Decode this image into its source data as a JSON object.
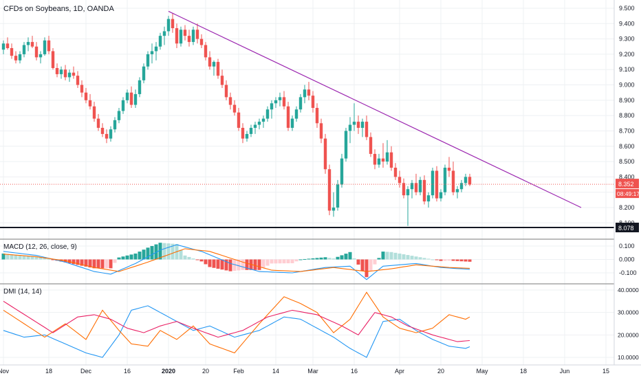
{
  "chart_data": [
    {
      "type": "candlestick",
      "title": "CFDs on Soybeans, 1D, OANDA",
      "y_axis": {
        "ticks": [
          "9.500",
          "9.400",
          "9.300",
          "9.200",
          "9.100",
          "9.000",
          "8.900",
          "8.800",
          "8.700",
          "8.600",
          "8.500",
          "8.400",
          "8.300",
          "8.200",
          "8.100"
        ],
        "ylim": [
          8.078,
          9.5
        ]
      },
      "last_price": "8.352",
      "countdown": "08:49:17",
      "low_marker": "8.078",
      "candles": [
        [
          9.23,
          9.29,
          9.2,
          9.27
        ],
        [
          9.27,
          9.31,
          9.23,
          9.24
        ],
        [
          9.24,
          9.27,
          9.17,
          9.19
        ],
        [
          9.19,
          9.22,
          9.14,
          9.16
        ],
        [
          9.16,
          9.22,
          9.14,
          9.2
        ],
        [
          9.2,
          9.28,
          9.18,
          9.26
        ],
        [
          9.26,
          9.31,
          9.22,
          9.28
        ],
        [
          9.28,
          9.32,
          9.24,
          9.25
        ],
        [
          9.25,
          9.28,
          9.16,
          9.18
        ],
        [
          9.18,
          9.22,
          9.14,
          9.2
        ],
        [
          9.2,
          9.31,
          9.19,
          9.29
        ],
        [
          9.29,
          9.32,
          9.2,
          9.22
        ],
        [
          9.22,
          9.24,
          9.1,
          9.11
        ],
        [
          9.11,
          9.14,
          9.05,
          9.07
        ],
        [
          9.07,
          9.12,
          9.04,
          9.1
        ],
        [
          9.1,
          9.13,
          9.03,
          9.05
        ],
        [
          9.05,
          9.1,
          9.02,
          9.08
        ],
        [
          9.08,
          9.12,
          9.04,
          9.06
        ],
        [
          9.06,
          9.09,
          8.98,
          9.0
        ],
        [
          9.0,
          9.03,
          8.92,
          8.95
        ],
        [
          8.95,
          8.98,
          8.88,
          8.9
        ],
        [
          8.9,
          8.94,
          8.84,
          8.86
        ],
        [
          8.86,
          8.89,
          8.76,
          8.78
        ],
        [
          8.78,
          8.81,
          8.7,
          8.72
        ],
        [
          8.72,
          8.75,
          8.66,
          8.68
        ],
        [
          8.68,
          8.71,
          8.62,
          8.65
        ],
        [
          8.65,
          8.73,
          8.63,
          8.71
        ],
        [
          8.71,
          8.79,
          8.69,
          8.77
        ],
        [
          8.77,
          8.85,
          8.75,
          8.83
        ],
        [
          8.83,
          8.92,
          8.81,
          8.9
        ],
        [
          8.9,
          8.97,
          8.88,
          8.95
        ],
        [
          8.95,
          8.99,
          8.85,
          8.87
        ],
        [
          8.87,
          8.97,
          8.85,
          8.94
        ],
        [
          8.94,
          9.05,
          8.92,
          9.03
        ],
        [
          9.03,
          9.14,
          9.01,
          9.12
        ],
        [
          9.12,
          9.22,
          9.1,
          9.2
        ],
        [
          9.2,
          9.27,
          9.14,
          9.22
        ],
        [
          9.22,
          9.28,
          9.16,
          9.25
        ],
        [
          9.25,
          9.34,
          9.23,
          9.32
        ],
        [
          9.32,
          9.38,
          9.26,
          9.35
        ],
        [
          9.35,
          9.45,
          9.32,
          9.43
        ],
        [
          9.43,
          9.47,
          9.34,
          9.37
        ],
        [
          9.37,
          9.4,
          9.24,
          9.27
        ],
        [
          9.27,
          9.38,
          9.25,
          9.36
        ],
        [
          9.36,
          9.39,
          9.29,
          9.32
        ],
        [
          9.32,
          9.36,
          9.25,
          9.28
        ],
        [
          9.28,
          9.38,
          9.26,
          9.36
        ],
        [
          9.36,
          9.4,
          9.27,
          9.3
        ],
        [
          9.3,
          9.33,
          9.24,
          9.26
        ],
        [
          9.26,
          9.28,
          9.16,
          9.18
        ],
        [
          9.18,
          9.22,
          9.1,
          9.12
        ],
        [
          9.12,
          9.16,
          9.06,
          9.15
        ],
        [
          9.15,
          9.17,
          9.04,
          9.06
        ],
        [
          9.06,
          9.1,
          8.98,
          9.0
        ],
        [
          9.0,
          9.03,
          8.9,
          8.92
        ],
        [
          8.92,
          8.95,
          8.84,
          8.87
        ],
        [
          8.87,
          8.9,
          8.8,
          8.82
        ],
        [
          8.82,
          8.85,
          8.7,
          8.72
        ],
        [
          8.72,
          8.75,
          8.62,
          8.65
        ],
        [
          8.65,
          8.7,
          8.63,
          8.68
        ],
        [
          8.68,
          8.74,
          8.66,
          8.72
        ],
        [
          8.72,
          8.76,
          8.68,
          8.74
        ],
        [
          8.74,
          8.78,
          8.71,
          8.76
        ],
        [
          8.76,
          8.8,
          8.72,
          8.78
        ],
        [
          8.78,
          8.86,
          8.76,
          8.84
        ],
        [
          8.84,
          8.9,
          8.78,
          8.88
        ],
        [
          8.88,
          8.92,
          8.85,
          8.9
        ],
        [
          8.9,
          8.95,
          8.86,
          8.92
        ],
        [
          8.92,
          8.96,
          8.84,
          8.86
        ],
        [
          8.86,
          8.89,
          8.7,
          8.72
        ],
        [
          8.72,
          8.8,
          8.7,
          8.78
        ],
        [
          8.78,
          8.86,
          8.76,
          8.84
        ],
        [
          8.84,
          8.94,
          8.82,
          8.92
        ],
        [
          8.92,
          9.0,
          8.88,
          8.97
        ],
        [
          8.97,
          9.02,
          8.9,
          8.93
        ],
        [
          8.93,
          8.96,
          8.82,
          8.85
        ],
        [
          8.85,
          8.88,
          8.72,
          8.75
        ],
        [
          8.75,
          8.78,
          8.62,
          8.65
        ],
        [
          8.65,
          8.68,
          8.42,
          8.45
        ],
        [
          8.45,
          8.48,
          8.15,
          8.18
        ],
        [
          8.18,
          8.3,
          8.14,
          8.2
        ],
        [
          8.2,
          8.38,
          8.18,
          8.35
        ],
        [
          8.35,
          8.55,
          8.33,
          8.52
        ],
        [
          8.52,
          8.72,
          8.5,
          8.7
        ],
        [
          8.7,
          8.79,
          8.62,
          8.74
        ],
        [
          8.74,
          8.88,
          8.7,
          8.76
        ],
        [
          8.76,
          8.8,
          8.68,
          8.72
        ],
        [
          8.72,
          8.78,
          8.66,
          8.76
        ],
        [
          8.76,
          8.8,
          8.64,
          8.66
        ],
        [
          8.66,
          8.69,
          8.53,
          8.55
        ],
        [
          8.55,
          8.58,
          8.45,
          8.48
        ],
        [
          8.48,
          8.55,
          8.46,
          8.52
        ],
        [
          8.52,
          8.62,
          8.46,
          8.5
        ],
        [
          8.5,
          8.64,
          8.48,
          8.56
        ],
        [
          8.56,
          8.6,
          8.44,
          8.46
        ],
        [
          8.46,
          8.49,
          8.38,
          8.4
        ],
        [
          8.4,
          8.44,
          8.33,
          8.36
        ],
        [
          8.36,
          8.39,
          8.26,
          8.28
        ],
        [
          8.28,
          8.34,
          8.08,
          8.32
        ],
        [
          8.32,
          8.38,
          8.26,
          8.36
        ],
        [
          8.36,
          8.42,
          8.28,
          8.3
        ],
        [
          8.3,
          8.4,
          8.28,
          8.38
        ],
        [
          8.38,
          8.41,
          8.22,
          8.24
        ],
        [
          8.24,
          8.3,
          8.2,
          8.28
        ],
        [
          8.28,
          8.46,
          8.26,
          8.44
        ],
        [
          8.44,
          8.47,
          8.24,
          8.26
        ],
        [
          8.26,
          8.32,
          8.24,
          8.3
        ],
        [
          8.3,
          8.48,
          8.28,
          8.46
        ],
        [
          8.46,
          8.53,
          8.4,
          8.44
        ],
        [
          8.44,
          8.5,
          8.28,
          8.3
        ],
        [
          8.3,
          8.34,
          8.26,
          8.32
        ],
        [
          8.32,
          8.38,
          8.3,
          8.36
        ],
        [
          8.36,
          8.42,
          8.34,
          8.4
        ],
        [
          8.4,
          8.42,
          8.34,
          8.35
        ]
      ],
      "trendline": {
        "start": [
          40,
          9.48
        ],
        "end": [
          140,
          8.2
        ]
      }
    },
    {
      "type": "line",
      "title": "MACD (12, 26, close, 9)",
      "y_axis": {
        "ticks": [
          "0.100",
          "0.000",
          "-0.100"
        ],
        "ylim": [
          -0.17,
          0.13
        ]
      },
      "knots_macd": [
        [
          0,
          0.06
        ],
        [
          8,
          0.03
        ],
        [
          15,
          -0.02
        ],
        [
          22,
          -0.09
        ],
        [
          26,
          -0.11
        ],
        [
          32,
          -0.03
        ],
        [
          38,
          0.07
        ],
        [
          42,
          0.11
        ],
        [
          48,
          0.06
        ],
        [
          55,
          -0.03
        ],
        [
          62,
          -0.09
        ],
        [
          70,
          -0.1
        ],
        [
          78,
          -0.06
        ],
        [
          84,
          -0.05
        ],
        [
          88,
          -0.15
        ],
        [
          92,
          -0.05
        ],
        [
          100,
          -0.03
        ],
        [
          106,
          -0.06
        ],
        [
          116,
          -0.08
        ],
        [
          122,
          -0.04
        ],
        [
          126,
          -0.03
        ]
      ],
      "knots_signal": [
        [
          0,
          0.04
        ],
        [
          8,
          0.02
        ],
        [
          15,
          -0.01
        ],
        [
          22,
          -0.06
        ],
        [
          28,
          -0.09
        ],
        [
          35,
          -0.02
        ],
        [
          44,
          0.08
        ],
        [
          50,
          0.06
        ],
        [
          58,
          -0.02
        ],
        [
          65,
          -0.08
        ],
        [
          72,
          -0.09
        ],
        [
          80,
          -0.06
        ],
        [
          88,
          -0.09
        ],
        [
          94,
          -0.07
        ],
        [
          100,
          -0.04
        ],
        [
          108,
          -0.06
        ],
        [
          116,
          -0.07
        ],
        [
          122,
          -0.05
        ],
        [
          126,
          -0.04
        ]
      ]
    },
    {
      "type": "line",
      "title": "DMI (14, 14)",
      "y_axis": {
        "ticks": [
          "40.0000",
          "30.0000",
          "20.0000",
          "10.0000"
        ],
        "ylim": [
          7,
          41
        ]
      },
      "knots_plus": [
        [
          0,
          22
        ],
        [
          5,
          19
        ],
        [
          10,
          20
        ],
        [
          15,
          16
        ],
        [
          20,
          12
        ],
        [
          24,
          10
        ],
        [
          28,
          20
        ],
        [
          31,
          31
        ],
        [
          35,
          33
        ],
        [
          38,
          30
        ],
        [
          42,
          26
        ],
        [
          46,
          22
        ],
        [
          50,
          24
        ],
        [
          56,
          19
        ],
        [
          62,
          22
        ],
        [
          68,
          28
        ],
        [
          72,
          27
        ],
        [
          76,
          23
        ],
        [
          80,
          19
        ],
        [
          84,
          14
        ],
        [
          88,
          10
        ],
        [
          92,
          26
        ],
        [
          96,
          27
        ],
        [
          100,
          22
        ],
        [
          104,
          18
        ],
        [
          108,
          15
        ],
        [
          112,
          14
        ],
        [
          116,
          17
        ],
        [
          120,
          19
        ],
        [
          124,
          18
        ],
        [
          126,
          18
        ]
      ],
      "knots_minus": [
        [
          0,
          31
        ],
        [
          5,
          25
        ],
        [
          10,
          19
        ],
        [
          15,
          25
        ],
        [
          20,
          18
        ],
        [
          24,
          31
        ],
        [
          28,
          22
        ],
        [
          31,
          16
        ],
        [
          35,
          15
        ],
        [
          38,
          22
        ],
        [
          42,
          18
        ],
        [
          46,
          24
        ],
        [
          50,
          16
        ],
        [
          56,
          12
        ],
        [
          62,
          25
        ],
        [
          68,
          37
        ],
        [
          72,
          34
        ],
        [
          76,
          30
        ],
        [
          80,
          21
        ],
        [
          84,
          27
        ],
        [
          88,
          39
        ],
        [
          92,
          28
        ],
        [
          96,
          23
        ],
        [
          100,
          21
        ],
        [
          104,
          23
        ],
        [
          108,
          29
        ],
        [
          112,
          27
        ],
        [
          116,
          31
        ],
        [
          120,
          27
        ],
        [
          124,
          20
        ],
        [
          126,
          19
        ]
      ],
      "knots_adx": [
        [
          0,
          35
        ],
        [
          6,
          28
        ],
        [
          12,
          21
        ],
        [
          18,
          28
        ],
        [
          22,
          29
        ],
        [
          26,
          27
        ],
        [
          30,
          23
        ],
        [
          34,
          21
        ],
        [
          38,
          24
        ],
        [
          42,
          26
        ],
        [
          46,
          23
        ],
        [
          52,
          19
        ],
        [
          58,
          22
        ],
        [
          64,
          28
        ],
        [
          70,
          31
        ],
        [
          76,
          29
        ],
        [
          82,
          24
        ],
        [
          86,
          20
        ],
        [
          90,
          30
        ],
        [
          94,
          28
        ],
        [
          98,
          24
        ],
        [
          104,
          20
        ],
        [
          110,
          17
        ],
        [
          116,
          18
        ],
        [
          120,
          17
        ],
        [
          126,
          13
        ]
      ]
    }
  ],
  "x_axis": {
    "labels": [
      {
        "text": "Nov",
        "i": 0
      },
      {
        "text": "18",
        "i": 11
      },
      {
        "text": "Dec",
        "i": 20
      },
      {
        "text": "16",
        "i": 30
      },
      {
        "text": "2020",
        "i": 40
      },
      {
        "text": "20",
        "i": 49
      },
      {
        "text": "Feb",
        "i": 57
      },
      {
        "text": "14",
        "i": 66
      },
      {
        "text": "Mar",
        "i": 75
      },
      {
        "text": "16",
        "i": 85
      },
      {
        "text": "Apr",
        "i": 96
      },
      {
        "text": "20",
        "i": 106
      },
      {
        "text": "May",
        "i": 116
      },
      {
        "text": "18",
        "i": 126
      },
      {
        "text": "Jun",
        "i": 136
      },
      {
        "text": "15",
        "i": 146
      }
    ]
  },
  "colors": {
    "up": "#26a69a",
    "down": "#ef5350",
    "trendline": "#9c27b0",
    "macd": "#2196f3",
    "signal": "#ff6d00",
    "hist_up": "#26a69a",
    "hist_up_fade": "#b2dfdb",
    "hist_dn": "#ef5350",
    "hist_dn_fade": "#ffcdd2",
    "di_plus": "#2196f3",
    "di_minus": "#ff6d00",
    "adx": "#e91e63",
    "grid": "#eef0f3",
    "text": "#131722",
    "last": "#ef5350"
  }
}
